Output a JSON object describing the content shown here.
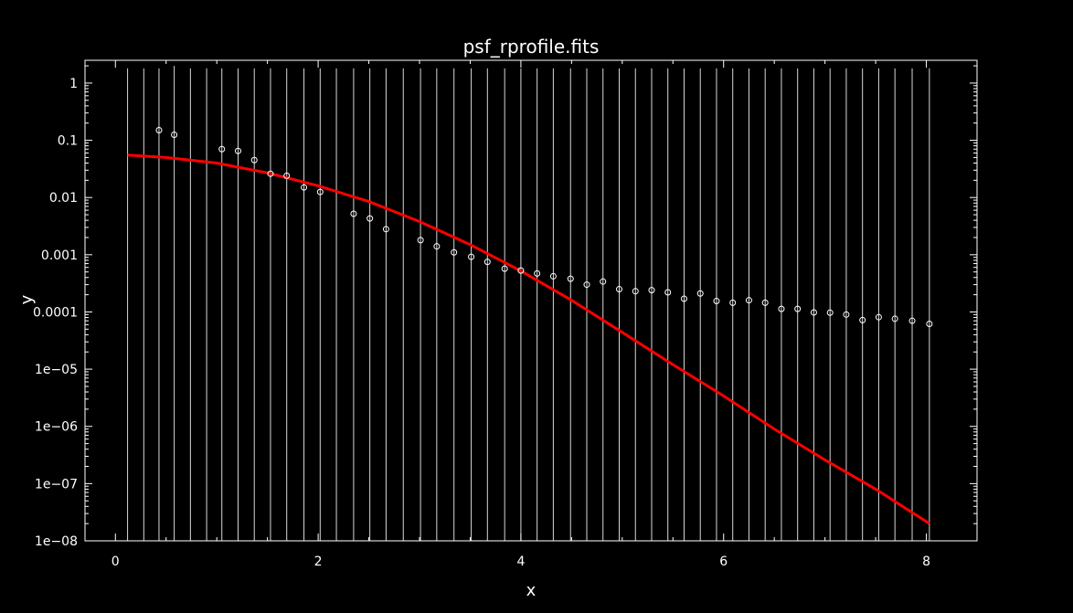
{
  "chart_data": {
    "type": "scatter",
    "title": "psf_rprofile.fits",
    "xlabel": "x",
    "ylabel": "y",
    "xlim": [
      -0.3,
      8.5
    ],
    "ylim": [
      1e-08,
      2.5
    ],
    "yscale": "log",
    "grid": false,
    "x_ticks": [
      0,
      2,
      4,
      6,
      8
    ],
    "x_tick_labels": [
      "0",
      "2",
      "4",
      "6",
      "8"
    ],
    "y_ticks": [
      1,
      0.1,
      0.01,
      0.001,
      0.0001,
      1e-05,
      1e-06,
      1e-07,
      1e-08
    ],
    "y_tick_labels": [
      "1",
      "0.1",
      "0.01",
      "0.001",
      "0.0001",
      "1e−05",
      "1e−06",
      "1e−07",
      "1e−08"
    ],
    "colors": {
      "background": "#000000",
      "axes": "#ffffff",
      "data": "#ffffff",
      "model": "#ff0000"
    },
    "errorbar_tops": [
      1.8,
      1.8,
      1.8,
      2.0,
      1.8,
      1.8,
      1.8,
      1.8,
      1.8,
      1.8,
      1.8,
      1.8,
      1.8,
      1.8,
      1.8,
      1.8,
      1.8,
      1.8,
      1.8,
      1.8,
      1.8,
      1.8,
      1.8,
      1.8,
      1.8,
      1.8,
      1.8,
      1.8,
      1.8,
      1.8,
      1.8,
      1.8,
      1.8,
      1.8,
      1.8,
      1.8,
      1.8,
      1.8,
      1.8,
      1.8,
      1.8,
      1.8,
      1.8,
      1.8,
      1.8,
      1.8,
      1.8,
      1.8,
      1.8,
      1.8
    ],
    "series": [
      {
        "kind": "data",
        "x": [
          0.12,
          0.28,
          0.43,
          0.58,
          0.74,
          0.9,
          1.05,
          1.21,
          1.37,
          1.53,
          1.69,
          1.86,
          2.02,
          2.18,
          2.35,
          2.51,
          2.67,
          2.84,
          3.01,
          3.17,
          3.34,
          3.51,
          3.67,
          3.84,
          4.0,
          4.16,
          4.32,
          4.49,
          4.65,
          4.81,
          4.97,
          5.13,
          5.29,
          5.45,
          5.61,
          5.77,
          5.93,
          6.09,
          6.25,
          6.41,
          6.57,
          6.73,
          6.89,
          7.05,
          7.21,
          7.37,
          7.53,
          7.69,
          7.86,
          8.03
        ],
        "y": [
          null,
          null,
          0.15,
          0.125,
          null,
          null,
          0.07,
          0.065,
          0.045,
          0.026,
          0.024,
          0.015,
          0.0125,
          null,
          0.0052,
          0.0043,
          0.0028,
          null,
          0.0018,
          0.0014,
          0.0011,
          0.00092,
          0.00075,
          0.00057,
          0.00053,
          0.00047,
          0.00042,
          0.00038,
          0.0003,
          0.00034,
          0.00025,
          0.00023,
          0.00024,
          0.00022,
          0.00017,
          0.00021,
          0.000155,
          0.000145,
          0.00016,
          0.000145,
          0.000113,
          0.000113,
          9.8e-05,
          9.7e-05,
          9e-05,
          7.2e-05,
          8.1e-05,
          7.6e-05,
          7e-05,
          6.2e-05
        ]
      },
      {
        "kind": "model",
        "x": [
          0.12,
          0.5,
          1.0,
          1.5,
          2.0,
          2.5,
          3.0,
          3.5,
          4.0,
          4.5,
          5.0,
          5.5,
          6.0,
          6.5,
          7.0,
          7.5,
          8.03
        ],
        "y": [
          0.055,
          0.05,
          0.04,
          0.027,
          0.016,
          0.0085,
          0.0038,
          0.0015,
          0.00052,
          0.00016,
          4.4e-05,
          1.2e-05,
          3.4e-06,
          9e-07,
          2.6e-07,
          8e-08,
          2e-08
        ]
      }
    ]
  }
}
